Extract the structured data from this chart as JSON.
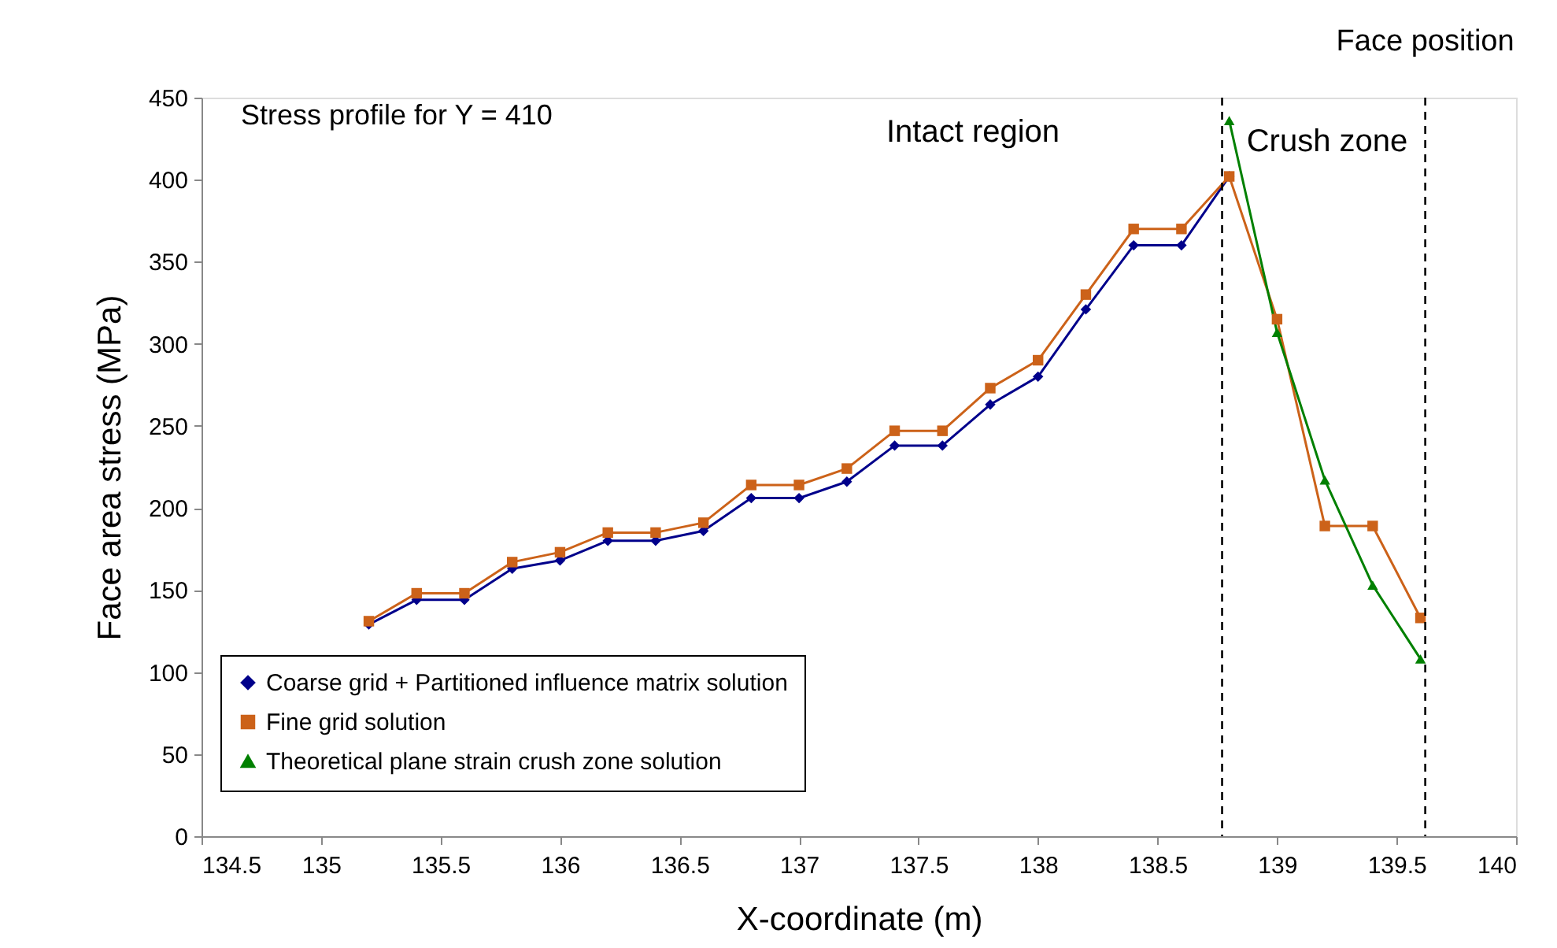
{
  "chart_data": {
    "type": "line",
    "xlabel": "X-coordinate (m)",
    "ylabel": "Face area stress (MPa)",
    "x": [
      135.2,
      135.4,
      135.6,
      135.8,
      136.0,
      136.2,
      136.4,
      136.6,
      136.8,
      137.0,
      137.2,
      137.4,
      137.6,
      137.8,
      138.0,
      138.2,
      138.4,
      138.6,
      138.8,
      139.0,
      139.2,
      139.4,
      139.6
    ],
    "series": [
      {
        "name": "Coarse grid + Partitioned influence matrix solution",
        "color": "#00008b",
        "marker": "diamond",
        "values": [
          129,
          144,
          144,
          163,
          168,
          180,
          180,
          186,
          206,
          206,
          216,
          238,
          238,
          263,
          280,
          321,
          360,
          360,
          402,
          null,
          null,
          null,
          null
        ]
      },
      {
        "name": "Fine grid solution",
        "color": "#cc6219",
        "marker": "square",
        "values": [
          131,
          148,
          148,
          167,
          173,
          185,
          185,
          191,
          214,
          214,
          224,
          247,
          247,
          273,
          290,
          330,
          370,
          370,
          402,
          315,
          189,
          189,
          133
        ]
      },
      {
        "name": "Theoretical plane strain crush zone solution",
        "color": "#008000",
        "marker": "triangle",
        "x": [
          138.8,
          139.0,
          139.2,
          139.4,
          139.6
        ],
        "values": [
          436,
          307,
          217,
          153,
          108
        ]
      }
    ],
    "xlim": [
      134.5,
      140
    ],
    "xticks": [
      134.5,
      135,
      135.5,
      136,
      136.5,
      137,
      137.5,
      138,
      138.5,
      139,
      139.5,
      140
    ],
    "ylim": [
      0,
      450
    ],
    "yticks": [
      0,
      50,
      100,
      150,
      200,
      250,
      300,
      350,
      400,
      450
    ],
    "ref_lines": [
      {
        "axis": "x",
        "value": 138.77,
        "color": "#000000",
        "line_style": "dashed"
      },
      {
        "axis": "x",
        "value": 139.62,
        "label": "Face position",
        "color": "#000000",
        "line_style": "dashed"
      }
    ],
    "annotations": [
      "Stress profile for Y = 410",
      "Intact region",
      "Crush zone"
    ],
    "grid": false,
    "legend": "bottom left",
    "line_style": "solid"
  }
}
